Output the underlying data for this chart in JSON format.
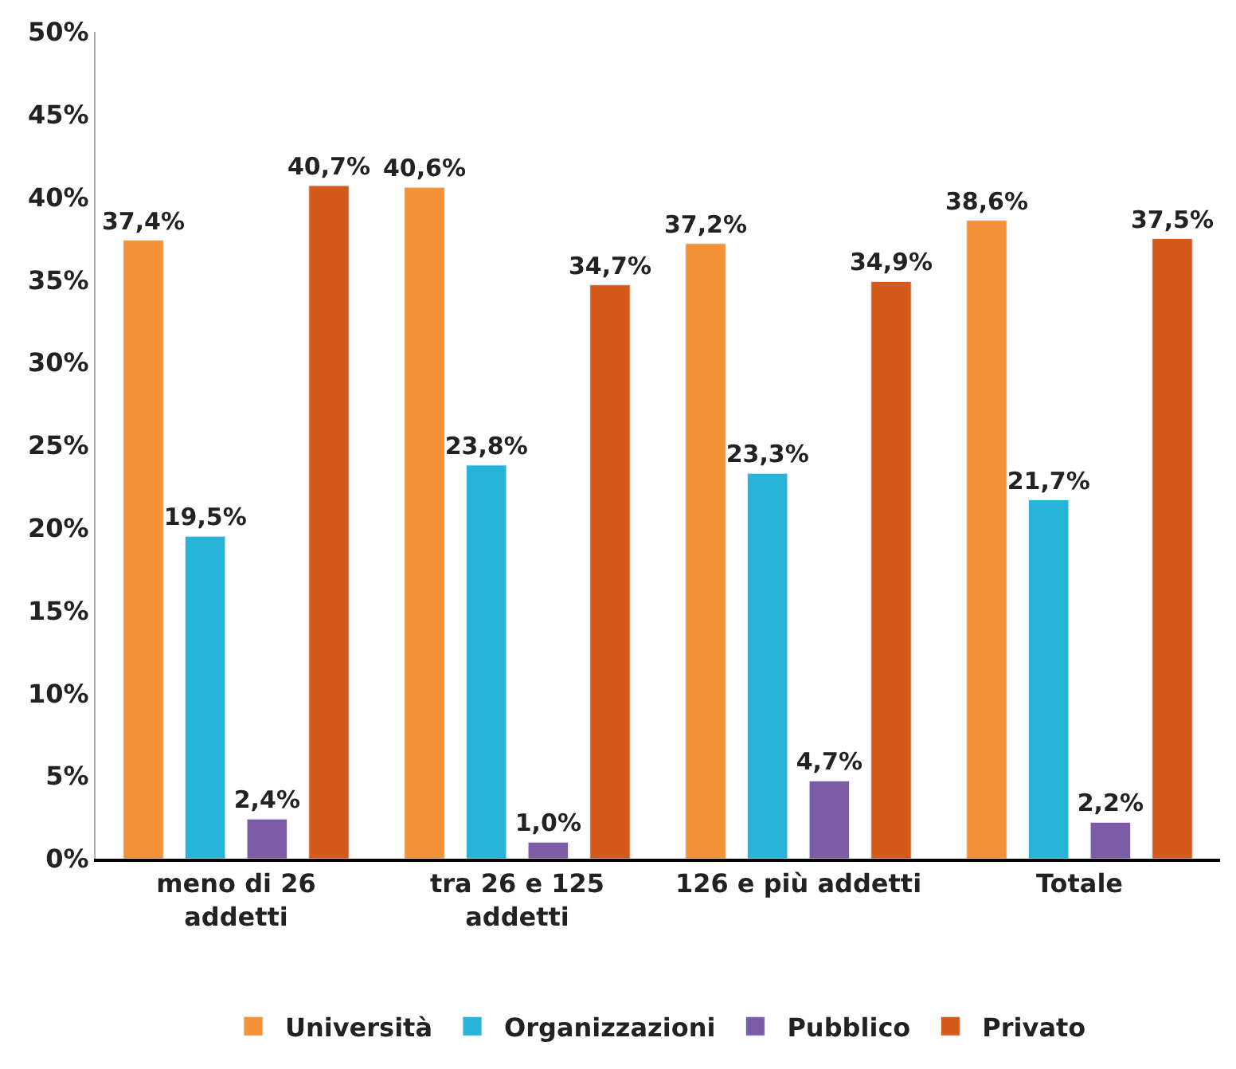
{
  "chart_data": {
    "type": "bar",
    "categories": [
      "meno di 26 addetti",
      "tra 26 e 125 addetti",
      "126 e più addetti",
      "Totale"
    ],
    "series": [
      {
        "name": "Università",
        "color": "#f39236",
        "values": [
          37.4,
          40.6,
          37.2,
          38.6
        ],
        "value_labels": [
          "37,4%",
          "40,6%",
          "37,2%",
          "38,6%"
        ]
      },
      {
        "name": "Organizzazioni",
        "color": "#27b4d8",
        "values": [
          19.5,
          23.8,
          23.3,
          21.7
        ],
        "value_labels": [
          "19,5%",
          "23,8%",
          "23,3%",
          "21,7%"
        ]
      },
      {
        "name": "Pubblico",
        "color": "#7d5ca6",
        "values": [
          2.4,
          1.0,
          4.7,
          2.2
        ],
        "value_labels": [
          "2,4%",
          "1,0%",
          "4,7%",
          "2,2%"
        ]
      },
      {
        "name": "Privato",
        "color": "#d45a1c",
        "values": [
          40.7,
          34.7,
          34.9,
          37.5
        ],
        "value_labels": [
          "40,7%",
          "34,7%",
          "34,9%",
          "37,5%"
        ]
      }
    ],
    "ylim": [
      0,
      50
    ],
    "yticks": [
      {
        "value": 0,
        "label": "0%"
      },
      {
        "value": 5,
        "label": "5%"
      },
      {
        "value": 10,
        "label": "10%"
      },
      {
        "value": 15,
        "label": "15%"
      },
      {
        "value": 20,
        "label": "20%"
      },
      {
        "value": 25,
        "label": "25%"
      },
      {
        "value": 30,
        "label": "30%"
      },
      {
        "value": 35,
        "label": "35%"
      },
      {
        "value": 40,
        "label": "40%"
      },
      {
        "value": 45,
        "label": "45%"
      },
      {
        "value": 50,
        "label": "50%"
      }
    ],
    "legend": "bottom"
  }
}
